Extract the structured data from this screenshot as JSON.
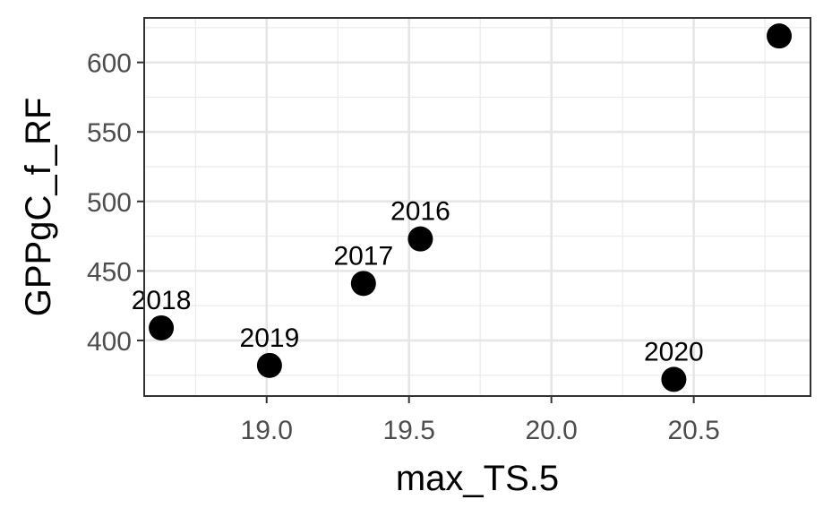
{
  "chart_data": {
    "type": "scatter",
    "title": "",
    "xlabel": "max_TS.5",
    "ylabel": "GPPgC_f_RF",
    "xlim": [
      18.57,
      20.91
    ],
    "ylim": [
      360,
      632
    ],
    "x_ticks": [
      19.0,
      19.5,
      20.0,
      20.5
    ],
    "x_tick_labels": [
      "19.0",
      "19.5",
      "20.0",
      "20.5"
    ],
    "y_ticks": [
      400,
      450,
      500,
      550,
      600
    ],
    "y_tick_labels": [
      "400",
      "450",
      "500",
      "550",
      "600"
    ],
    "grid": true,
    "legend": "none",
    "point_color": "#000000",
    "points": [
      {
        "x": 18.63,
        "y": 409,
        "label": "2018"
      },
      {
        "x": 19.01,
        "y": 382,
        "label": "2019"
      },
      {
        "x": 19.34,
        "y": 441,
        "label": "2017"
      },
      {
        "x": 19.54,
        "y": 473,
        "label": "2016"
      },
      {
        "x": 20.43,
        "y": 372,
        "label": "2020"
      },
      {
        "x": 20.8,
        "y": 619,
        "label": ""
      }
    ]
  }
}
